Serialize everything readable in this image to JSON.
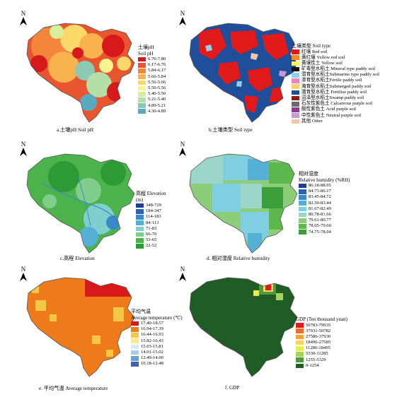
{
  "panels": {
    "a": {
      "caption": "a.土壤pH  Soil pH",
      "legend_title_cn": "土壤pH",
      "legend_title_en": "Soil pH",
      "north": "N",
      "classes": [
        {
          "label": "6.76-7.80",
          "color": "#d7191c"
        },
        {
          "label": "6.17-6.76",
          "color": "#e8552f"
        },
        {
          "label": "5.84-6.17",
          "color": "#f4863c"
        },
        {
          "label": "5.66-5.84",
          "color": "#f9b24e"
        },
        {
          "label": "5.56-5.66",
          "color": "#fcd76a"
        },
        {
          "label": "5.50-5.56",
          "color": "#f7f38e"
        },
        {
          "label": "5.40-5.50",
          "color": "#d9ee9b"
        },
        {
          "label": "5.21-5.40",
          "color": "#b4dfa6"
        },
        {
          "label": "4.89-5.21",
          "color": "#8cc9b3"
        },
        {
          "label": "4.30-4.89",
          "color": "#5aaabf"
        }
      ]
    },
    "b": {
      "caption": "b.土壤类型  Soil type",
      "legend_title": "土壤类型  Soil type",
      "north": "N",
      "classes": [
        {
          "label": "红壤  Red soil",
          "color": "#e31a1c"
        },
        {
          "label": "黄红壤  Yellow red soil",
          "color": "#f08a2b"
        },
        {
          "label": "黄壤性土  Yellow soil",
          "color": "#fff25a"
        },
        {
          "label": "矿毒型水稻土  Mineral type paddy soil",
          "color": "#111111"
        },
        {
          "label": "潜育型水稻土Submarine type paddy soil",
          "color": "#8fd1e8"
        },
        {
          "label": "渗育型水稻土Fertile paddy soil",
          "color": "#ee82c6"
        },
        {
          "label": "淹育型水稻土Submerged paddy soil",
          "color": "#f6d26a"
        },
        {
          "label": "潴育型水稻土  Fertilize paddy soil",
          "color": "#1f4e9a"
        },
        {
          "label": "沼泽型水稻土Swamp paddy soil",
          "color": "#8a1e12"
        },
        {
          "label": "石灰性紫色土  Calcareous purple soil",
          "color": "#6a6a6a"
        },
        {
          "label": "酸性紫色土  Acid purple soil",
          "color": "#8e3d8e"
        },
        {
          "label": "中性紫色土  Neutral purple soil",
          "color": "#c79ad0"
        },
        {
          "label": "其他  Other",
          "color": "#f3c7a8"
        }
      ]
    },
    "c": {
      "caption": "c.高程  Elevation",
      "legend_title_cn": "高程  Elevation",
      "legend_title_en": "(m)",
      "north": "N",
      "classes": [
        {
          "label": "348-729",
          "color": "#1f3e8f"
        },
        {
          "label": "184-347",
          "color": "#2d62b0"
        },
        {
          "label": "114-183",
          "color": "#3a89c9"
        },
        {
          "label": "84-113",
          "color": "#56b0d6"
        },
        {
          "label": "71-83",
          "color": "#7fcfcf"
        },
        {
          "label": "66-70",
          "color": "#80cc8a"
        },
        {
          "label": "53-65",
          "color": "#4cb24c"
        },
        {
          "label": "22-52",
          "color": "#2e9a35"
        }
      ]
    },
    "d": {
      "caption": "d.  相对湿度  Relative humidity",
      "legend_title_cn": "相对湿度",
      "legend_title_en": "Relative humidity (%RH)",
      "north": "N",
      "classes": [
        {
          "label": "86.18-88.95",
          "color": "#1f3e8f"
        },
        {
          "label": "84.73-86.17",
          "color": "#2d62b0"
        },
        {
          "label": "83.45-84.72",
          "color": "#3a89c9"
        },
        {
          "label": "82.50-83.44",
          "color": "#56b0d6"
        },
        {
          "label": "81.67-82.49",
          "color": "#7fcfe0"
        },
        {
          "label": "80.78-81.66",
          "color": "#9ad7c9"
        },
        {
          "label": "79.61-80.77",
          "color": "#8ccd7a"
        },
        {
          "label": "78.05-79.60",
          "color": "#5cb84d"
        },
        {
          "label": "74.75-78.04",
          "color": "#3a9e3a"
        }
      ]
    },
    "e": {
      "caption": "e.  平均气温  Average temperature",
      "legend_title_cn": "平均气温",
      "legend_title_en": "Average temperature (℃)",
      "north": "N",
      "classes": [
        {
          "label": "17.40-18.57",
          "color": "#d7191c"
        },
        {
          "label": "16.94-17.39",
          "color": "#ef7a1a"
        },
        {
          "label": "16.44-16.93",
          "color": "#f6c646"
        },
        {
          "label": "15.82-16.43",
          "color": "#fbe98a"
        },
        {
          "label": "15.03-15.81",
          "color": "#d6ecf2"
        },
        {
          "label": "14.01-15.02",
          "color": "#a6cde8"
        },
        {
          "label": "12.49-14.00",
          "color": "#6a9fd3"
        },
        {
          "label": "10.18-12.48",
          "color": "#3b63b4"
        }
      ]
    },
    "f": {
      "caption": "f.  GDP",
      "legend_title": "GDP (Ten thousand yuan)",
      "north": "N",
      "classes": [
        {
          "label": "50783-79935",
          "color": "#e31a1c"
        },
        {
          "label": "37931-50782",
          "color": "#f26b2a"
        },
        {
          "label": "27586-37930",
          "color": "#f8a33a"
        },
        {
          "label": "18496-27585",
          "color": "#fbd35a"
        },
        {
          "label": "11286-18495",
          "color": "#e6ef4e"
        },
        {
          "label": "5330-11285",
          "color": "#a4d45b"
        },
        {
          "label": "1255-5329",
          "color": "#4f9b3c"
        },
        {
          "label": "0-1254",
          "color": "#1f5c26"
        }
      ]
    }
  }
}
